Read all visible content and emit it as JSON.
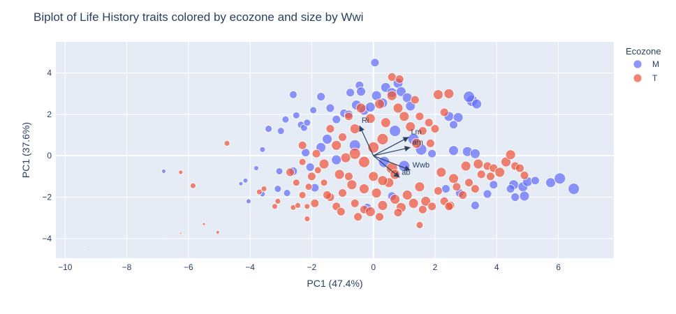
{
  "chart_data": {
    "type": "scatter",
    "title": "Biplot of Life History traits colored by ecozone and size by Wwi",
    "xlabel": "PC1 (47.4%)",
    "ylabel": "PC1 (37.6%)",
    "xlim": [
      -10.3,
      7.8
    ],
    "ylim": [
      -4.95,
      5.5
    ],
    "xticks": [
      -10,
      -8,
      -6,
      -4,
      -2,
      0,
      2,
      4,
      6
    ],
    "yticks": [
      -4,
      -2,
      0,
      2,
      4
    ],
    "grid": true,
    "legend": {
      "title": "Ecozone",
      "placement": "top-right"
    },
    "series": [
      {
        "name": "M",
        "color": "#636efa",
        "points": [
          [
            -9.35,
            -4.4,
            0.5
          ],
          [
            -6.8,
            -0.75,
            3
          ],
          [
            -4.3,
            -1.35,
            3
          ],
          [
            -4.15,
            -1.2,
            3.5
          ],
          [
            -4.05,
            -2.2,
            3.5
          ],
          [
            -3.8,
            -0.6,
            3.5
          ],
          [
            -3.6,
            0.3,
            4
          ],
          [
            -3.6,
            -1.85,
            4
          ],
          [
            -3.4,
            1.3,
            5
          ],
          [
            -3.0,
            1.2,
            5
          ],
          [
            -2.85,
            1.75,
            5
          ],
          [
            -2.6,
            2.95,
            5.5
          ],
          [
            -2.5,
            1.95,
            5
          ],
          [
            -2.35,
            1.5,
            5
          ],
          [
            -2.25,
            1.35,
            5
          ],
          [
            -2.15,
            1.6,
            5
          ],
          [
            -1.95,
            2.2,
            5
          ],
          [
            -1.7,
            2.85,
            6
          ],
          [
            -1.4,
            2.3,
            6
          ],
          [
            -1.2,
            1.75,
            6
          ],
          [
            -0.95,
            2.05,
            6
          ],
          [
            -0.8,
            2.0,
            6
          ],
          [
            -0.75,
            3.05,
            6
          ],
          [
            -0.55,
            2.45,
            7
          ],
          [
            -0.45,
            3.4,
            6
          ],
          [
            -0.4,
            3.1,
            6.5
          ],
          [
            -0.3,
            2.2,
            7
          ],
          [
            -0.1,
            2.35,
            7
          ],
          [
            0.1,
            2.9,
            7
          ],
          [
            0.3,
            2.55,
            7
          ],
          [
            0.4,
            3.3,
            7
          ],
          [
            0.6,
            3.05,
            7
          ],
          [
            0.8,
            3.5,
            7
          ],
          [
            0.9,
            3.1,
            7
          ],
          [
            1.1,
            2.8,
            7
          ],
          [
            1.2,
            2.4,
            7
          ],
          [
            0.05,
            4.5,
            6
          ],
          [
            -2.05,
            -0.55,
            6
          ],
          [
            -2.6,
            -0.75,
            6
          ],
          [
            -3.05,
            -0.75,
            5
          ],
          [
            -3.1,
            -1.6,
            5
          ],
          [
            -2.8,
            -1.8,
            5
          ],
          [
            -2.2,
            0.15,
            6
          ],
          [
            -1.9,
            -1.55,
            6
          ],
          [
            -1.7,
            0.4,
            7
          ],
          [
            -1.5,
            0.8,
            7
          ],
          [
            -1.2,
            -0.2,
            7
          ],
          [
            -0.6,
            0.5,
            8
          ],
          [
            0.35,
            -0.3,
            8
          ],
          [
            0.7,
            1.2,
            8
          ],
          [
            1.0,
            -0.5,
            8
          ],
          [
            1.3,
            0.8,
            8
          ],
          [
            1.55,
            0.3,
            8
          ],
          [
            2.6,
            0.25,
            7
          ],
          [
            3.05,
            0.2,
            7
          ],
          [
            3.2,
            2.65,
            8
          ],
          [
            3.1,
            2.85,
            8
          ],
          [
            3.35,
            2.5,
            7
          ],
          [
            2.45,
            1.9,
            7
          ],
          [
            2.75,
            1.85,
            7
          ],
          [
            2.6,
            1.5,
            6
          ],
          [
            3.3,
            -2.4,
            6
          ],
          [
            2.35,
            -1.6,
            6
          ],
          [
            2.8,
            -1.8,
            6
          ],
          [
            3.7,
            -1.85,
            6
          ],
          [
            4.55,
            -1.4,
            7
          ],
          [
            4.85,
            -1.5,
            7
          ],
          [
            5.0,
            -1.25,
            7
          ],
          [
            4.45,
            -1.6,
            6
          ],
          [
            4.9,
            -1.95,
            7
          ],
          [
            4.6,
            -2.0,
            6
          ],
          [
            5.75,
            -1.3,
            7
          ],
          [
            6.05,
            -1.1,
            8
          ],
          [
            6.5,
            -1.6,
            8
          ],
          [
            5.25,
            -1.2,
            6
          ],
          [
            3.9,
            -1.4,
            6
          ],
          [
            3.3,
            0.1,
            7
          ],
          [
            1.9,
            0.1,
            6
          ],
          [
            0.6,
            -1.95,
            6
          ],
          [
            -0.2,
            -2.5,
            6
          ]
        ]
      },
      {
        "name": "T",
        "color": "#ef553b",
        "points": [
          [
            -6.75,
            -4.1,
            1
          ],
          [
            -6.25,
            -3.75,
            1.5
          ],
          [
            -5.5,
            -3.3,
            2
          ],
          [
            -5.05,
            -3.7,
            2.5
          ],
          [
            -6.25,
            -0.8,
            3
          ],
          [
            -5.85,
            -1.45,
            4
          ],
          [
            -4.75,
            0.6,
            4
          ],
          [
            -3.55,
            -1.6,
            4
          ],
          [
            -3.7,
            -1.75,
            4
          ],
          [
            -3.1,
            -2.2,
            4
          ],
          [
            -3.2,
            -2.45,
            4
          ],
          [
            -2.6,
            -2.5,
            4
          ],
          [
            -2.15,
            -3.05,
            4
          ],
          [
            -2.45,
            -2.4,
            4
          ],
          [
            -2.15,
            -2.45,
            4
          ],
          [
            -2.3,
            -1.9,
            5
          ],
          [
            -2.5,
            -1.3,
            5
          ],
          [
            -2.1,
            -1.5,
            5
          ],
          [
            -2.3,
            -0.3,
            5
          ],
          [
            -1.8,
            -0.7,
            5
          ],
          [
            -1.6,
            -1.3,
            5
          ],
          [
            -1.4,
            -2.0,
            6
          ],
          [
            -1.2,
            -2.45,
            6
          ],
          [
            -1.0,
            -1.8,
            6
          ],
          [
            -0.8,
            -1.0,
            6
          ],
          [
            -0.6,
            -2.3,
            6
          ],
          [
            -0.3,
            -2.6,
            6
          ],
          [
            -0.1,
            -2.7,
            7
          ],
          [
            0.1,
            -1.8,
            7
          ],
          [
            0.3,
            -2.4,
            7
          ],
          [
            0.5,
            -1.3,
            7
          ],
          [
            0.7,
            -2.1,
            7
          ],
          [
            0.9,
            -2.5,
            7
          ],
          [
            1.1,
            -1.9,
            7
          ],
          [
            1.3,
            -2.3,
            7
          ],
          [
            1.5,
            -1.5,
            7
          ],
          [
            1.7,
            -2.2,
            7
          ],
          [
            1.9,
            -2.45,
            6
          ],
          [
            2.1,
            -1.7,
            6
          ],
          [
            2.3,
            -2.2,
            6
          ],
          [
            2.5,
            -2.4,
            6
          ],
          [
            2.7,
            -1.5,
            6
          ],
          [
            2.9,
            -1.9,
            6
          ],
          [
            3.1,
            -1.3,
            6
          ],
          [
            3.3,
            -1.6,
            6
          ],
          [
            3.5,
            -0.9,
            6
          ],
          [
            3.7,
            -0.5,
            6
          ],
          [
            3.9,
            -0.6,
            6
          ],
          [
            4.1,
            -0.8,
            7
          ],
          [
            4.3,
            -0.3,
            7
          ],
          [
            4.45,
            0.05,
            7
          ],
          [
            4.6,
            -0.5,
            6
          ],
          [
            4.75,
            -0.6,
            6
          ],
          [
            4.9,
            -0.95,
            6
          ],
          [
            2.2,
            -0.8,
            7
          ],
          [
            2.6,
            -1.1,
            7
          ],
          [
            3.0,
            -0.5,
            7
          ],
          [
            3.4,
            -0.4,
            7
          ],
          [
            2.45,
            -2.45,
            6
          ],
          [
            1.5,
            -3.35,
            5
          ],
          [
            -1.4,
            1.3,
            6
          ],
          [
            -1.0,
            0.9,
            6
          ],
          [
            -0.8,
            1.9,
            6
          ],
          [
            -0.6,
            1.3,
            7
          ],
          [
            -0.4,
            2.3,
            7
          ],
          [
            -0.1,
            1.8,
            7
          ],
          [
            0.2,
            2.5,
            7
          ],
          [
            0.4,
            1.6,
            7
          ],
          [
            0.6,
            2.9,
            7
          ],
          [
            0.8,
            2.3,
            7
          ],
          [
            1.0,
            1.9,
            7
          ],
          [
            1.2,
            1.4,
            7
          ],
          [
            1.4,
            0.6,
            7
          ],
          [
            1.6,
            1.2,
            6
          ],
          [
            1.8,
            1.6,
            6
          ],
          [
            2.0,
            1.3,
            6
          ],
          [
            0.6,
            3.8,
            6
          ],
          [
            0.85,
            3.7,
            6
          ],
          [
            1.35,
            2.7,
            6
          ],
          [
            2.1,
            2.95,
            7
          ],
          [
            2.45,
            3.0,
            7
          ],
          [
            2.3,
            2.1,
            6
          ],
          [
            1.5,
            1.9,
            6
          ],
          [
            1.85,
            0.6,
            6
          ],
          [
            -0.6,
            0.1,
            8
          ],
          [
            -0.3,
            -0.3,
            8
          ],
          [
            0.0,
            0.4,
            8
          ],
          [
            0.3,
            0.8,
            8
          ],
          [
            0.6,
            -0.6,
            8
          ],
          [
            -1.6,
            -0.4,
            7
          ],
          [
            -1.2,
            0.5,
            7
          ],
          [
            -0.9,
            -0.1,
            7
          ],
          [
            -2.3,
            0.5,
            6
          ],
          [
            -1.85,
            0.1,
            6
          ],
          [
            -1.1,
            -0.9,
            7
          ],
          [
            -0.7,
            -1.4,
            7
          ],
          [
            -0.3,
            -1.6,
            7
          ],
          [
            0.0,
            -1.0,
            7
          ],
          [
            0.3,
            -1.2,
            7
          ],
          [
            0.7,
            -0.9,
            7
          ],
          [
            -2.0,
            -1.0,
            6
          ],
          [
            -2.7,
            -0.8,
            6
          ],
          [
            -1.5,
            -1.9,
            6
          ],
          [
            -1.9,
            -2.3,
            6
          ],
          [
            0.2,
            -2.95,
            6
          ],
          [
            -0.5,
            -2.95,
            6
          ],
          [
            -1.05,
            -2.7,
            6
          ],
          [
            0.8,
            -2.75,
            6
          ],
          [
            1.6,
            -2.6,
            6
          ],
          [
            3.8,
            -1.0,
            6
          ]
        ]
      }
    ],
    "vectors": [
      {
        "label": "Ri",
        "x": -0.45,
        "y": 1.45
      },
      {
        "label": "Lm",
        "x": 1.15,
        "y": 0.9
      },
      {
        "label": "am",
        "x": 1.2,
        "y": 0.4
      },
      {
        "label": "Wwb",
        "x": 1.2,
        "y": -0.7
      },
      {
        "label": "ab",
        "x": 0.85,
        "y": -1.05
      }
    ]
  }
}
